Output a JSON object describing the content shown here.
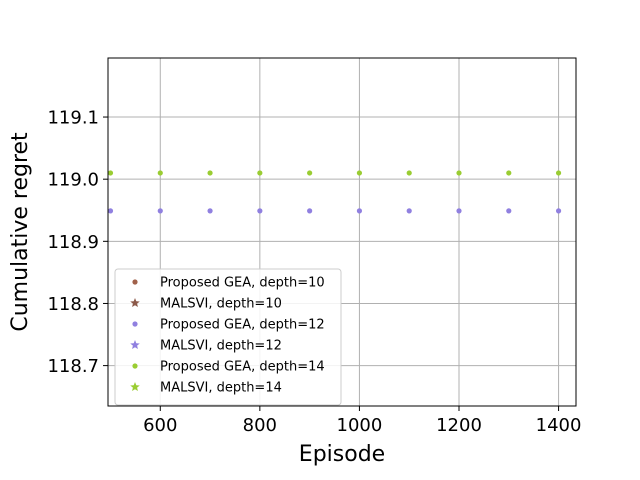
{
  "chart_data": {
    "type": "scatter",
    "xlabel": "Episode",
    "ylabel": "Cumulative regret",
    "xlim": [
      495,
      1435
    ],
    "ylim": [
      118.635,
      119.195
    ],
    "x_ticks": [
      600,
      800,
      1000,
      1200,
      1400
    ],
    "y_ticks": [
      118.7,
      118.8,
      118.9,
      119.0,
      119.1
    ],
    "x_tick_labels": [
      "600",
      "800",
      "1000",
      "1200",
      "1400"
    ],
    "y_tick_labels": [
      "118.7",
      "118.8",
      "118.9",
      "119.0",
      "119.1"
    ],
    "grid": true,
    "legend_position": "lower-left",
    "x": [
      500,
      600,
      700,
      800,
      900,
      1000,
      1100,
      1200,
      1300,
      1400
    ],
    "series": [
      {
        "name": "Proposed GEA, depth=10",
        "marker": "dot",
        "color": "#a0614a",
        "values": []
      },
      {
        "name": "MALSVI, depth=10",
        "marker": "star",
        "color": "#8c5a4a",
        "values": []
      },
      {
        "name": "Proposed GEA, depth=12",
        "marker": "dot",
        "color": "#9080e0",
        "values": [
          118.949,
          118.949,
          118.949,
          118.949,
          118.949,
          118.949,
          118.949,
          118.949,
          118.949,
          118.949
        ]
      },
      {
        "name": "MALSVI, depth=12",
        "marker": "star",
        "color": "#9080e0",
        "values": []
      },
      {
        "name": "Proposed GEA, depth=14",
        "marker": "dot",
        "color": "#9acd32",
        "values": [
          119.01,
          119.01,
          119.01,
          119.01,
          119.01,
          119.01,
          119.01,
          119.01,
          119.01,
          119.01
        ]
      },
      {
        "name": "MALSVI, depth=14",
        "marker": "star",
        "color": "#9acd32",
        "values": []
      }
    ]
  }
}
